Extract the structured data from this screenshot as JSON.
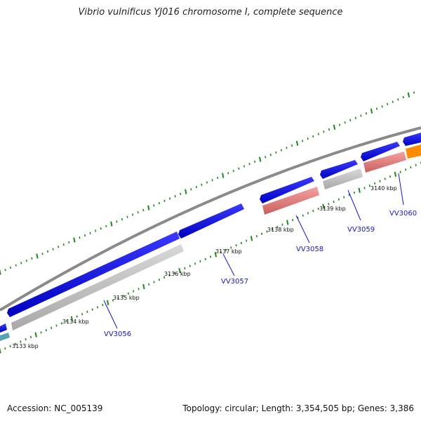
{
  "title": "Vibrio vulnificus YJ016 chromosome I, complete sequence",
  "footer": {
    "accession": "Accession: NC_005139",
    "stats": "Topology: circular; Length: 3,354,505 bp; Genes: 3,386"
  },
  "ruler_labels": [
    "3133 kbp",
    "3134 kbp",
    "3135 kbp",
    "3136 kbp",
    "3137 kbp",
    "3138 kbp",
    "3139 kbp",
    "3140 kbp"
  ],
  "gene_labels": [
    "VV3056",
    "VV3057",
    "VV3058",
    "VV3059",
    "VV3060"
  ],
  "colors": {
    "cds_blue": "#1010e0",
    "gray_feature": "#c0c0c0",
    "pink_feature": "#f08080",
    "orange_feature": "#ff8c00",
    "teal_feature": "#5aa0b4",
    "backbone": "#888888",
    "tick_green": "#1a8a1a",
    "label_blue": "#1515c8"
  }
}
